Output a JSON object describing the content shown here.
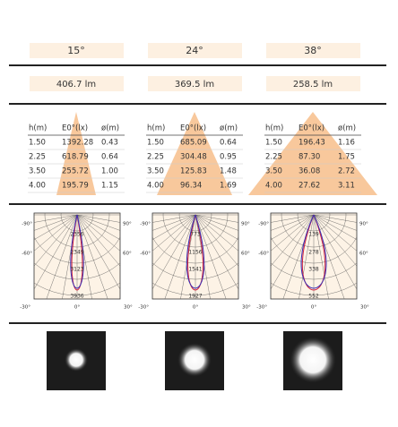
{
  "columns": [
    {
      "angle": "15°",
      "flux": "406.7 lm",
      "table": {
        "headers": [
          "h(m)",
          "E0°(lx)",
          "ø(m)"
        ],
        "rows": [
          [
            "1.50",
            "1392.28",
            "0.43"
          ],
          [
            "2.25",
            "618.79",
            "0.64"
          ],
          [
            "3.50",
            "255.72",
            "1.00"
          ],
          [
            "4.00",
            "195.79",
            "1.15"
          ]
        ]
      },
      "polar": {
        "angle_labels": [
          "-90°",
          "90°",
          "-60°",
          "60°",
          "-30°",
          "0°",
          "30°"
        ],
        "intensity_labels": [
          "2356",
          "2349",
          "3123",
          "3936"
        ]
      }
    },
    {
      "angle": "24°",
      "flux": "369.5 lm",
      "table": {
        "headers": [
          "h(m)",
          "E0°(lx)",
          "ø(m)"
        ],
        "rows": [
          [
            "1.50",
            "685.09",
            "0.64"
          ],
          [
            "2.25",
            "304.48",
            "0.95"
          ],
          [
            "3.50",
            "125.83",
            "1.48"
          ],
          [
            "4.00",
            "96.34",
            "1.69"
          ]
        ]
      },
      "polar": {
        "angle_labels": [
          "-90°",
          "90°",
          "-60°",
          "60°",
          "-30°",
          "0°",
          "30°"
        ],
        "intensity_labels": [
          "773",
          "1156",
          "1541",
          "1927"
        ]
      }
    },
    {
      "angle": "38°",
      "flux": "258.5 lm",
      "table": {
        "headers": [
          "h(m)",
          "E0°(lx)",
          "ø(m)"
        ],
        "rows": [
          [
            "1.50",
            "196.43",
            "1.16"
          ],
          [
            "2.25",
            "87.30",
            "1.75"
          ],
          [
            "3.50",
            "36.08",
            "2.72"
          ],
          [
            "4.00",
            "27.62",
            "3.11"
          ]
        ]
      },
      "polar": {
        "angle_labels": [
          "-90°",
          "90°",
          "-60°",
          "60°",
          "-30°",
          "0°",
          "30°"
        ],
        "intensity_labels": [
          "139",
          "278",
          "338",
          "552"
        ]
      }
    }
  ]
}
